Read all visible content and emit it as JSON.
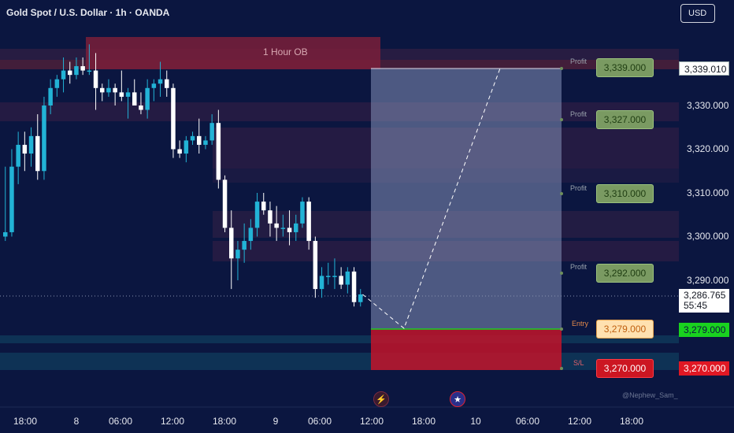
{
  "header": {
    "title": "Gold Spot / U.S. Dollar · 1h · OANDA",
    "currency_button": "USD"
  },
  "zones": {
    "order_block_label": "1 Hour OB"
  },
  "price_axis": {
    "ticks": [
      "3,330.000",
      "3,320.000",
      "3,310.000",
      "3,300.000",
      "3,290.000"
    ],
    "current_price": "3,286.765",
    "countdown": "55:45",
    "top_tag": "3,339.010",
    "entry_tag": "3,279.000",
    "sl_tag": "3,270.000"
  },
  "targets": [
    {
      "label": "Profit",
      "price": "3,339.000"
    },
    {
      "label": "Profit",
      "price": "3,327.000"
    },
    {
      "label": "Profit",
      "price": "3,310.000"
    },
    {
      "label": "Profit",
      "price": "3,292.000"
    }
  ],
  "entry": {
    "label": "Entry",
    "price": "3,279.000"
  },
  "stop": {
    "label": "S/L",
    "price": "3,270.000"
  },
  "time_axis": [
    "18:00",
    "8",
    "06:00",
    "12:00",
    "18:00",
    "9",
    "06:00",
    "12:00",
    "18:00",
    "10",
    "06:00",
    "12:00",
    "18:00"
  ],
  "watermark": "@Nephew_Sam_",
  "icons": {
    "event_icon": "lightning-icon",
    "flag_icon": "us-flag-icon"
  },
  "colors": {
    "bull": "#22b3d6",
    "bear": "#ffffff",
    "entry_green": "#19d21f",
    "sl_red": "#e01824"
  },
  "chart_data": {
    "type": "candlestick",
    "candles": [
      {
        "o": 3300,
        "h": 3316,
        "l": 3299,
        "c": 3301
      },
      {
        "o": 3301,
        "h": 3320,
        "l": 3300,
        "c": 3316
      },
      {
        "o": 3316,
        "h": 3324,
        "l": 3312,
        "c": 3321
      },
      {
        "o": 3321,
        "h": 3324,
        "l": 3315,
        "c": 3319
      },
      {
        "o": 3319,
        "h": 3325,
        "l": 3316,
        "c": 3323
      },
      {
        "o": 3323,
        "h": 3328,
        "l": 3313,
        "c": 3315
      },
      {
        "o": 3315,
        "h": 3332,
        "l": 3313,
        "c": 3330
      },
      {
        "o": 3330,
        "h": 3336,
        "l": 3328,
        "c": 3334
      },
      {
        "o": 3334,
        "h": 3337,
        "l": 3332,
        "c": 3336
      },
      {
        "o": 3336,
        "h": 3341,
        "l": 3333,
        "c": 3338
      },
      {
        "o": 3338,
        "h": 3340,
        "l": 3335,
        "c": 3337
      },
      {
        "o": 3337,
        "h": 3341,
        "l": 3336,
        "c": 3339
      },
      {
        "o": 3339,
        "h": 3341,
        "l": 3337,
        "c": 3338
      },
      {
        "o": 3338,
        "h": 3344,
        "l": 3337,
        "c": 3338
      },
      {
        "o": 3338,
        "h": 3342,
        "l": 3329,
        "c": 3334
      },
      {
        "o": 3334,
        "h": 3335,
        "l": 3331,
        "c": 3333
      },
      {
        "o": 3333,
        "h": 3336,
        "l": 3332,
        "c": 3334
      },
      {
        "o": 3334,
        "h": 3335,
        "l": 3330,
        "c": 3333
      },
      {
        "o": 3333,
        "h": 3338,
        "l": 3331,
        "c": 3332
      },
      {
        "o": 3332,
        "h": 3334,
        "l": 3327,
        "c": 3333
      },
      {
        "o": 3333,
        "h": 3336,
        "l": 3330,
        "c": 3330
      },
      {
        "o": 3330,
        "h": 3333,
        "l": 3328,
        "c": 3329
      },
      {
        "o": 3329,
        "h": 3336,
        "l": 3327,
        "c": 3334
      },
      {
        "o": 3334,
        "h": 3336,
        "l": 3331,
        "c": 3335
      },
      {
        "o": 3335,
        "h": 3340,
        "l": 3332,
        "c": 3336
      },
      {
        "o": 3336,
        "h": 3338,
        "l": 3332,
        "c": 3334
      },
      {
        "o": 3334,
        "h": 3335,
        "l": 3318,
        "c": 3320
      },
      {
        "o": 3320,
        "h": 3322,
        "l": 3318,
        "c": 3319
      },
      {
        "o": 3319,
        "h": 3323,
        "l": 3317,
        "c": 3322
      },
      {
        "o": 3322,
        "h": 3324,
        "l": 3321,
        "c": 3323
      },
      {
        "o": 3323,
        "h": 3327,
        "l": 3319,
        "c": 3321
      },
      {
        "o": 3321,
        "h": 3323,
        "l": 3320,
        "c": 3322
      },
      {
        "o": 3322,
        "h": 3328,
        "l": 3321,
        "c": 3326
      },
      {
        "o": 3326,
        "h": 3329,
        "l": 3311,
        "c": 3313
      },
      {
        "o": 3313,
        "h": 3314,
        "l": 3301,
        "c": 3302
      },
      {
        "o": 3302,
        "h": 3306,
        "l": 3288,
        "c": 3295
      },
      {
        "o": 3295,
        "h": 3299,
        "l": 3290,
        "c": 3297
      },
      {
        "o": 3297,
        "h": 3303,
        "l": 3294,
        "c": 3299
      },
      {
        "o": 3299,
        "h": 3304,
        "l": 3297,
        "c": 3302
      },
      {
        "o": 3302,
        "h": 3310,
        "l": 3300,
        "c": 3308
      },
      {
        "o": 3308,
        "h": 3310,
        "l": 3305,
        "c": 3306
      },
      {
        "o": 3306,
        "h": 3308,
        "l": 3300,
        "c": 3303
      },
      {
        "o": 3303,
        "h": 3307,
        "l": 3299,
        "c": 3302
      },
      {
        "o": 3302,
        "h": 3305,
        "l": 3300,
        "c": 3302
      },
      {
        "o": 3302,
        "h": 3306,
        "l": 3298,
        "c": 3301
      },
      {
        "o": 3301,
        "h": 3305,
        "l": 3299,
        "c": 3303
      },
      {
        "o": 3303,
        "h": 3309,
        "l": 3302,
        "c": 3308
      },
      {
        "o": 3308,
        "h": 3309,
        "l": 3297,
        "c": 3299
      },
      {
        "o": 3299,
        "h": 3300,
        "l": 3286,
        "c": 3288
      },
      {
        "o": 3288,
        "h": 3293,
        "l": 3286,
        "c": 3291
      },
      {
        "o": 3291,
        "h": 3294,
        "l": 3289,
        "c": 3291
      },
      {
        "o": 3291,
        "h": 3295,
        "l": 3288,
        "c": 3291
      },
      {
        "o": 3291,
        "h": 3293,
        "l": 3288,
        "c": 3289
      },
      {
        "o": 3289,
        "h": 3293,
        "l": 3287,
        "c": 3292
      },
      {
        "o": 3292,
        "h": 3293,
        "l": 3284,
        "c": 3285
      },
      {
        "o": 3285,
        "h": 3288,
        "l": 3284,
        "c": 3286.765
      }
    ],
    "projection": [
      3286.765,
      3279,
      3339
    ],
    "xlabels": [
      "18:00",
      "8",
      "06:00",
      "12:00",
      "18:00",
      "9",
      "06:00",
      "12:00",
      "18:00",
      "10",
      "06:00",
      "12:00",
      "18:00"
    ]
  }
}
